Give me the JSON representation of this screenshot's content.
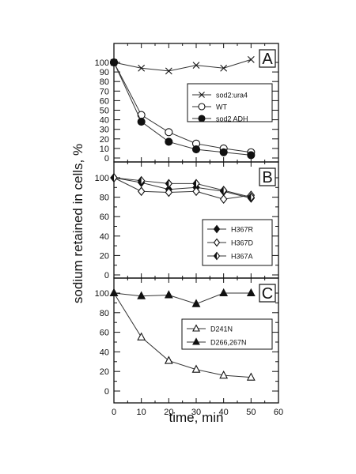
{
  "chart_data": [
    {
      "type": "line",
      "panel_label": "A",
      "xlabel": "time, min",
      "ylabel": "sodium retained in cells, %",
      "ylim": [
        0,
        110
      ],
      "y_ticks": [
        "0",
        "10",
        "20",
        "30",
        "40",
        "50",
        "60",
        "70",
        "80",
        "90",
        "100"
      ],
      "legend_position": "center-right",
      "series": [
        {
          "name": "sod2:ura4",
          "marker": "x",
          "x": [
            0,
            10,
            20,
            30,
            40,
            50
          ],
          "y": [
            100,
            94,
            91,
            97,
            94,
            103
          ]
        },
        {
          "name": "WT",
          "marker": "open-circle",
          "x": [
            0,
            10,
            20,
            30,
            40,
            50
          ],
          "y": [
            100,
            45,
            27,
            15,
            10,
            6
          ]
        },
        {
          "name": "sod2 ADH",
          "marker": "filled-circle",
          "x": [
            0,
            10,
            20,
            30,
            40,
            50
          ],
          "y": [
            100,
            38,
            17,
            9,
            6,
            3
          ]
        }
      ]
    },
    {
      "type": "line",
      "panel_label": "B",
      "ylim": [
        0,
        110
      ],
      "y_ticks": [
        "0",
        "20",
        "40",
        "60",
        "80",
        "100"
      ],
      "legend_position": "bottom-right",
      "series": [
        {
          "name": "H367R",
          "marker": "filled-diamond",
          "x": [
            0,
            10,
            20,
            30,
            40,
            50
          ],
          "y": [
            100,
            95,
            88,
            90,
            86,
            79
          ]
        },
        {
          "name": "H367D",
          "marker": "open-diamond",
          "x": [
            0,
            10,
            20,
            30,
            40,
            50
          ],
          "y": [
            100,
            86,
            85,
            86,
            78,
            82
          ]
        },
        {
          "name": "H367A",
          "marker": "half-diamond",
          "x": [
            0,
            10,
            20,
            30,
            40,
            50
          ],
          "y": [
            100,
            97,
            94,
            94,
            87,
            80
          ]
        }
      ]
    },
    {
      "type": "line",
      "panel_label": "C",
      "xlim": [
        0,
        60
      ],
      "ylim": [
        0,
        110
      ],
      "x_ticks": [
        "0",
        "10",
        "20",
        "30",
        "40",
        "50",
        "60"
      ],
      "y_ticks": [
        "0",
        "20",
        "40",
        "60",
        "80",
        "100"
      ],
      "legend_position": "center-right",
      "series": [
        {
          "name": "D241N",
          "marker": "open-triangle",
          "x": [
            0,
            10,
            20,
            30,
            40,
            50
          ],
          "y": [
            100,
            55,
            31,
            22,
            16,
            14
          ]
        },
        {
          "name": "D266,267N",
          "marker": "filled-triangle",
          "x": [
            0,
            10,
            20,
            30,
            40,
            50
          ],
          "y": [
            100,
            97,
            98,
            89,
            100,
            100
          ]
        }
      ]
    }
  ]
}
